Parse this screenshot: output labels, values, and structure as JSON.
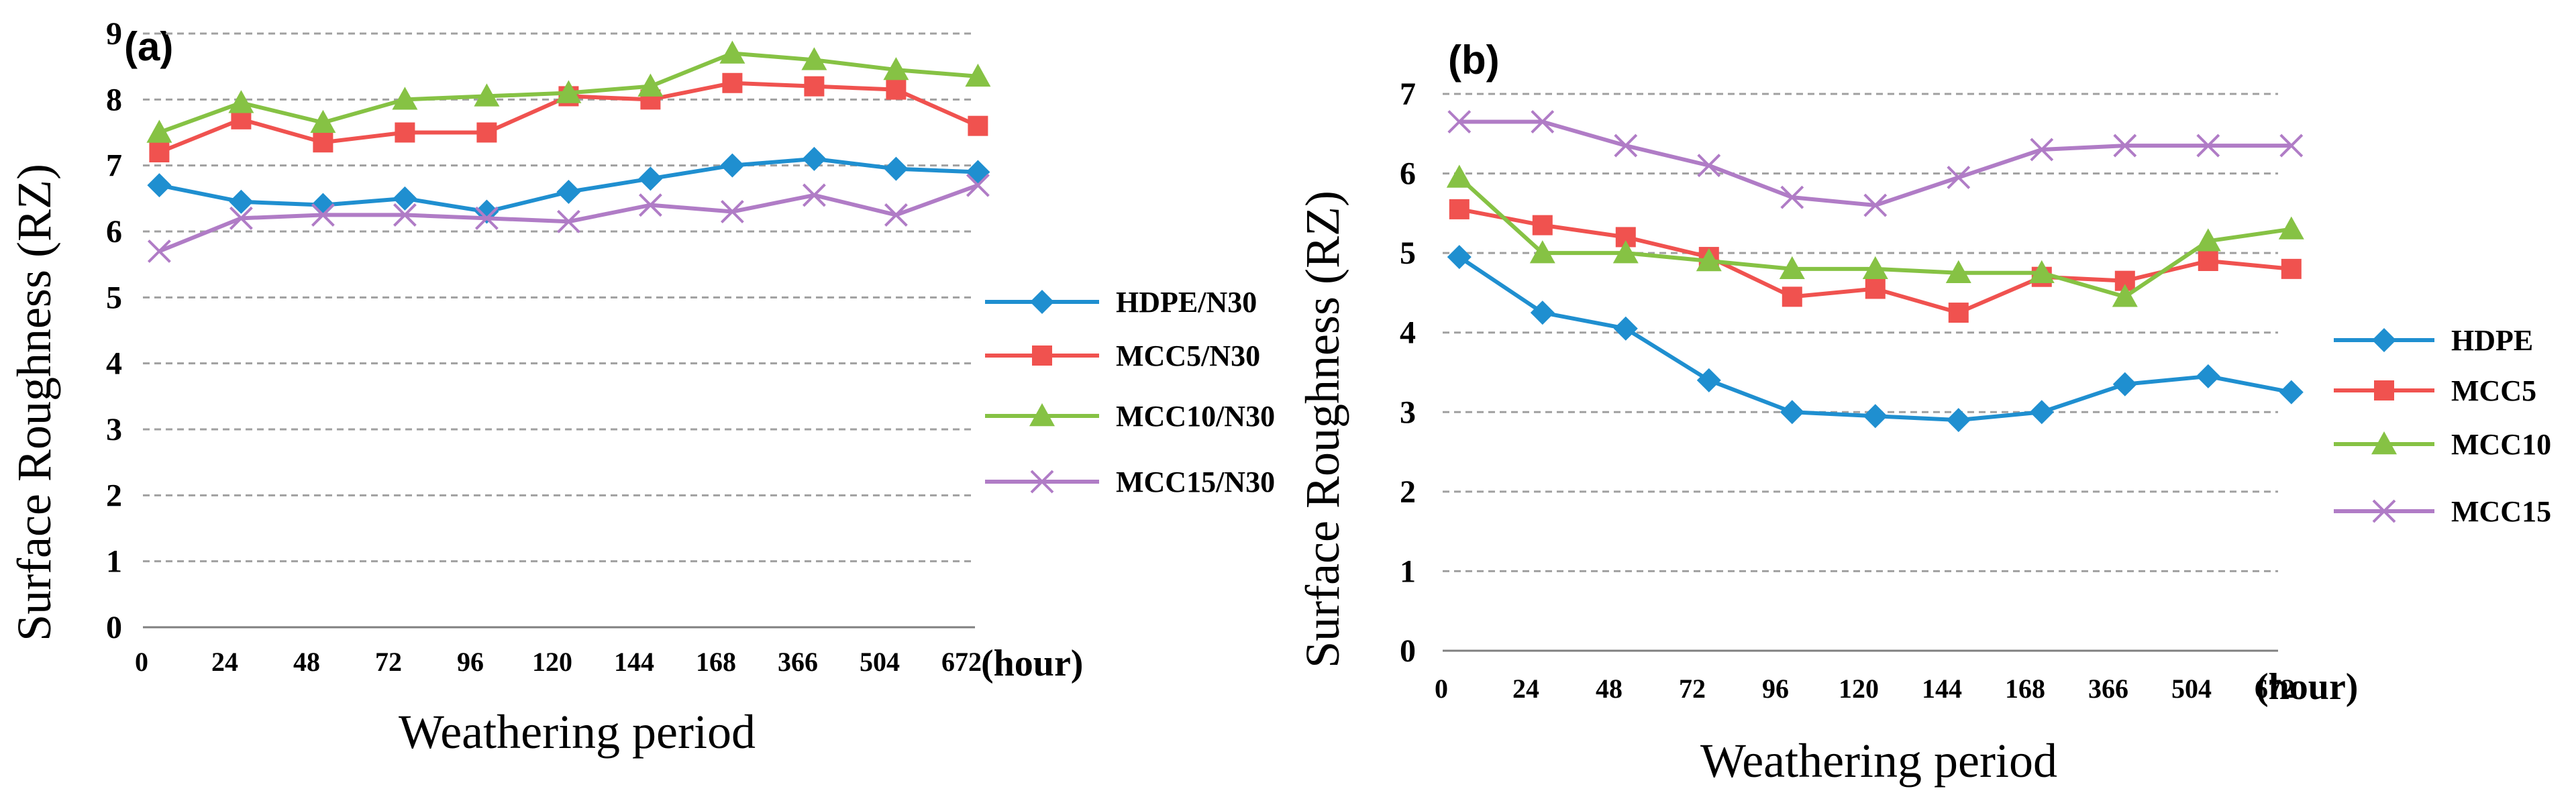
{
  "colors": {
    "hdpe": "#1f8fd0",
    "mcc5": "#f0524f",
    "mcc10": "#86c244",
    "mcc15": "#b07cc6"
  },
  "chart_data": [
    {
      "type": "line",
      "panel_label": "(a)",
      "title": "",
      "xlabel": "Weathering period",
      "ylabel": "Surface Roughness (RZ)",
      "x_unit": "(hour)",
      "categories": [
        "0",
        "24",
        "48",
        "72",
        "96",
        "120",
        "144",
        "168",
        "366",
        "504",
        "672"
      ],
      "y_ticks": [
        0,
        1,
        2,
        3,
        4,
        5,
        6,
        7,
        8,
        9
      ],
      "ylim": [
        0,
        9
      ],
      "grid": true,
      "legend_position": "right",
      "series": [
        {
          "name": "HDPE/N30",
          "marker": "diamond",
          "color_key": "hdpe",
          "values": [
            6.7,
            6.45,
            6.4,
            6.5,
            6.3,
            6.6,
            6.8,
            7.0,
            7.1,
            6.95,
            6.9
          ]
        },
        {
          "name": "MCC5/N30",
          "marker": "square",
          "color_key": "mcc5",
          "values": [
            7.2,
            7.7,
            7.35,
            7.5,
            7.5,
            8.05,
            8.0,
            8.25,
            8.2,
            8.15,
            7.6
          ]
        },
        {
          "name": "MCC10/N30",
          "marker": "triangle",
          "color_key": "mcc10",
          "values": [
            7.5,
            7.95,
            7.65,
            8.0,
            8.05,
            8.1,
            8.2,
            8.7,
            8.6,
            8.45,
            8.35
          ]
        },
        {
          "name": "MCC15/N30",
          "marker": "cross",
          "color_key": "mcc15",
          "values": [
            5.7,
            6.2,
            6.25,
            6.25,
            6.2,
            6.15,
            6.4,
            6.3,
            6.55,
            6.25,
            6.7
          ]
        }
      ]
    },
    {
      "type": "line",
      "panel_label": "(b)",
      "title": "",
      "xlabel": "Weathering period",
      "ylabel": "Surface Roughness (RZ)",
      "x_unit": "(hour)",
      "categories": [
        "0",
        "24",
        "48",
        "72",
        "96",
        "120",
        "144",
        "168",
        "366",
        "504",
        "672"
      ],
      "y_ticks": [
        0,
        1,
        2,
        3,
        4,
        5,
        6,
        7
      ],
      "ylim": [
        0,
        7
      ],
      "grid": true,
      "legend_position": "right",
      "series": [
        {
          "name": "HDPE",
          "marker": "diamond",
          "color_key": "hdpe",
          "values": [
            4.95,
            4.25,
            4.05,
            3.4,
            3.0,
            2.95,
            2.9,
            3.0,
            3.35,
            3.45,
            3.25
          ]
        },
        {
          "name": "MCC5",
          "marker": "square",
          "color_key": "mcc5",
          "values": [
            5.55,
            5.35,
            5.2,
            4.95,
            4.45,
            4.55,
            4.25,
            4.7,
            4.65,
            4.9,
            4.8
          ]
        },
        {
          "name": "MCC10",
          "marker": "triangle",
          "color_key": "mcc10",
          "values": [
            5.95,
            5.0,
            5.0,
            4.9,
            4.8,
            4.8,
            4.75,
            4.75,
            4.45,
            5.15,
            5.3
          ]
        },
        {
          "name": "MCC15",
          "marker": "cross",
          "color_key": "mcc15",
          "values": [
            6.65,
            6.65,
            6.35,
            6.1,
            5.7,
            5.6,
            5.95,
            6.3,
            6.35,
            6.35,
            6.35
          ]
        }
      ]
    }
  ]
}
